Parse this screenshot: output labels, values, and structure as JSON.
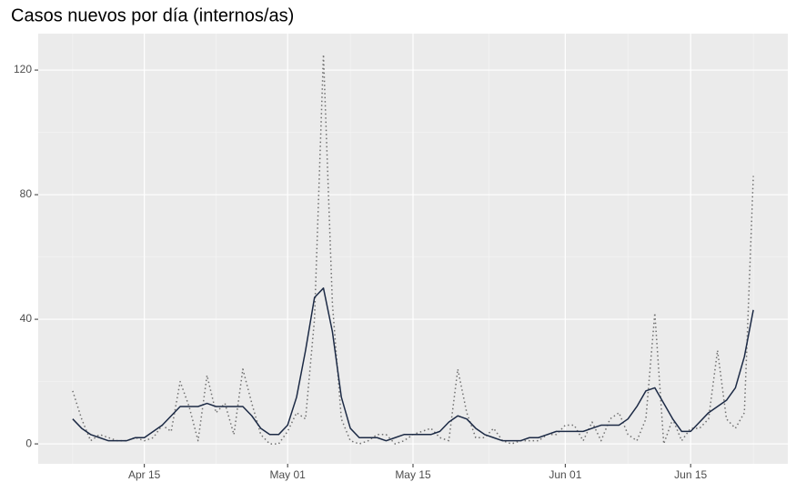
{
  "chart_data": {
    "type": "line",
    "title": "Casos nuevos por día (internos/as)",
    "x": [
      "Apr 07",
      "Apr 08",
      "Apr 09",
      "Apr 10",
      "Apr 11",
      "Apr 12",
      "Apr 13",
      "Apr 14",
      "Apr 15",
      "Apr 16",
      "Apr 17",
      "Apr 18",
      "Apr 19",
      "Apr 20",
      "Apr 21",
      "Apr 22",
      "Apr 23",
      "Apr 24",
      "Apr 25",
      "Apr 26",
      "Apr 27",
      "Apr 28",
      "Apr 29",
      "Apr 30",
      "May 01",
      "May 02",
      "May 03",
      "May 04",
      "May 05",
      "May 06",
      "May 07",
      "May 08",
      "May 09",
      "May 10",
      "May 11",
      "May 12",
      "May 13",
      "May 14",
      "May 15",
      "May 16",
      "May 17",
      "May 18",
      "May 19",
      "May 20",
      "May 21",
      "May 22",
      "May 23",
      "May 24",
      "May 25",
      "May 26",
      "May 27",
      "May 28",
      "May 29",
      "May 30",
      "May 31",
      "Jun 01",
      "Jun 02",
      "Jun 03",
      "Jun 04",
      "Jun 05",
      "Jun 06",
      "Jun 07",
      "Jun 08",
      "Jun 09",
      "Jun 10",
      "Jun 11",
      "Jun 12",
      "Jun 13",
      "Jun 14",
      "Jun 15",
      "Jun 16",
      "Jun 17",
      "Jun 18",
      "Jun 19",
      "Jun 20",
      "Jun 21",
      "Jun 22"
    ],
    "series": [
      {
        "color": "#707070",
        "dash": true,
        "values": [
          17,
          8,
          1,
          3,
          2,
          1,
          1,
          2,
          1,
          2,
          6,
          4,
          20,
          12,
          1,
          22,
          10,
          13,
          3,
          24,
          13,
          3,
          0,
          0,
          4,
          10,
          8,
          40,
          125,
          45,
          8,
          1,
          0,
          1,
          3,
          3,
          0,
          1,
          3,
          4,
          5,
          2,
          1,
          24,
          10,
          2,
          2,
          5,
          1,
          0,
          1,
          1,
          1,
          3,
          3,
          6,
          6,
          1,
          7,
          1,
          8,
          10,
          3,
          1,
          8,
          42,
          0,
          8,
          1,
          5,
          5,
          8,
          30,
          8,
          5,
          10,
          86
        ]
      },
      {
        "color": "#1c2a45",
        "dash": false,
        "values": [
          8,
          5,
          3,
          2,
          1,
          1,
          1,
          2,
          2,
          4,
          6,
          9,
          12,
          12,
          12,
          13,
          12,
          12,
          12,
          12,
          9,
          5,
          3,
          3,
          6,
          15,
          30,
          47,
          50,
          36,
          15,
          5,
          2,
          2,
          2,
          1,
          2,
          3,
          3,
          3,
          3,
          4,
          7,
          9,
          8,
          5,
          3,
          2,
          1,
          1,
          1,
          2,
          2,
          3,
          4,
          4,
          4,
          4,
          5,
          6,
          6,
          6,
          8,
          12,
          17,
          18,
          13,
          8,
          4,
          4,
          7,
          10,
          12,
          14,
          18,
          28,
          43
        ]
      }
    ],
    "xticks": [
      "Apr 15",
      "May 01",
      "May 15",
      "Jun 01",
      "Jun 15"
    ],
    "ylim": [
      -6.4,
      131.7
    ],
    "yticks": [
      0,
      40,
      80,
      120
    ],
    "grid": true
  }
}
